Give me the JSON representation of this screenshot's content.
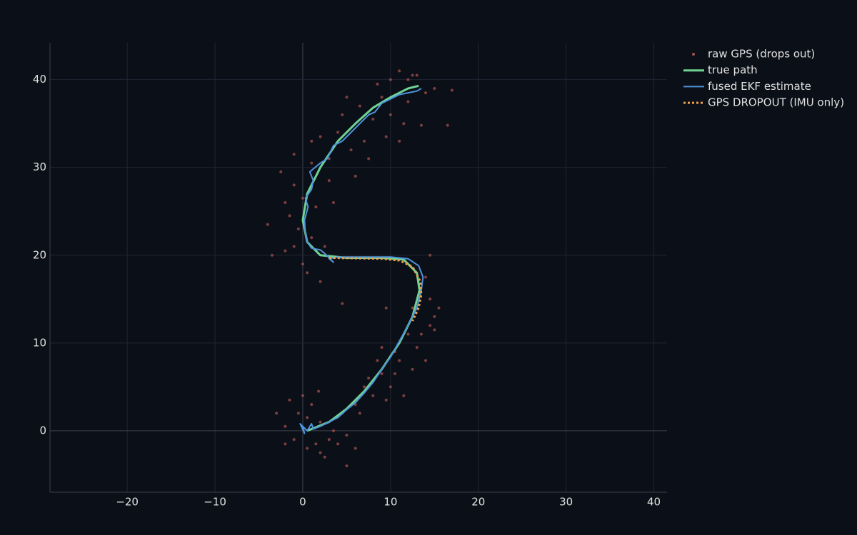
{
  "chart_data": {
    "type": "scatter",
    "xlim": [
      -28.8,
      41.5
    ],
    "ylim": [
      -7.0,
      44.2
    ],
    "xticks": [
      {
        "value": -20,
        "label": "−20"
      },
      {
        "value": -10,
        "label": "−10"
      },
      0,
      10,
      20,
      30,
      40
    ],
    "yticks": [
      0,
      10,
      20,
      30,
      40
    ],
    "grid": true,
    "legend": "top-right",
    "series": [
      {
        "name": "raw GPS (drops out)",
        "color": "#a4504f",
        "mode": "markers",
        "x": [
          -2,
          -1,
          0.5,
          1.5,
          2,
          -0.5,
          3,
          1,
          -3,
          2.5,
          4,
          0,
          1.8,
          5,
          -1.5,
          3.5,
          0.5,
          2,
          4.5,
          -2,
          6,
          7,
          8,
          9,
          10,
          11,
          6.5,
          8.5,
          10.5,
          9.5,
          12.5,
          7.5,
          11.5,
          9,
          13,
          14,
          12,
          14.5,
          15,
          14.5,
          15.5,
          12.5,
          13.5,
          14,
          15,
          9.5,
          14.5,
          10.5,
          5,
          6,
          0,
          -1,
          1,
          -2,
          0.5,
          2,
          -0.5,
          -3.5,
          -1.5,
          1.5,
          -4,
          2.5,
          4.5,
          0,
          -1,
          -2,
          -2.5,
          3,
          1,
          -1,
          1,
          3,
          4,
          5.5,
          6,
          7,
          4.5,
          6.5,
          8,
          7.5,
          9,
          10,
          11.5,
          12,
          10,
          12.5,
          14,
          11,
          13,
          15,
          16.5,
          17,
          11,
          9.5,
          3.5,
          2,
          5,
          13.5,
          8.5,
          12
        ],
        "y": [
          0.5,
          -1,
          -2,
          -1.5,
          1,
          2,
          -1,
          3,
          2,
          -3,
          -1.5,
          4,
          4.5,
          -4,
          3.5,
          0,
          1.5,
          -2.5,
          2,
          -1.5,
          3,
          5,
          4,
          6.5,
          5,
          8,
          2,
          8,
          9,
          3.5,
          7,
          6,
          4,
          9.5,
          9.5,
          8,
          11,
          12,
          13,
          15,
          14,
          14,
          11,
          17.5,
          11.5,
          14,
          20,
          6.5,
          -0.5,
          -2,
          19,
          21,
          22,
          20.5,
          18,
          17,
          23,
          20,
          24.5,
          25.5,
          23.5,
          21,
          14.5,
          26.5,
          28,
          26,
          29.5,
          28.5,
          30.5,
          31.5,
          33,
          31,
          34,
          32,
          29,
          33,
          36,
          37,
          35.5,
          31,
          38,
          36,
          35,
          37.5,
          40,
          40.5,
          38.5,
          41,
          40.5,
          39,
          34.8,
          38.8,
          33,
          33.5,
          26,
          33.5,
          38,
          34.8,
          39.5,
          40
        ]
      },
      {
        "name": "true path",
        "color": "#6fd394",
        "mode": "lines",
        "width": 3,
        "x": [
          0.5,
          3,
          5,
          7,
          9,
          11,
          12.5,
          13.3,
          13,
          11.5,
          9,
          5,
          2,
          0.5,
          0,
          0.5,
          2,
          4,
          6,
          8,
          10,
          12,
          13.2
        ],
        "y": [
          0,
          1,
          2.5,
          4.5,
          7,
          10,
          13,
          16,
          18,
          19.5,
          19.7,
          19.7,
          20,
          21.5,
          24,
          27,
          30,
          33,
          35,
          36.8,
          38,
          39,
          39.3
        ]
      },
      {
        "name": "fused EKF estimate",
        "color": "#4f93dc",
        "mode": "lines",
        "width": 2,
        "x": [
          0,
          0.2,
          -0.3,
          0.5,
          1,
          1.2,
          2,
          3,
          4,
          5,
          6,
          7,
          8,
          9,
          10,
          11,
          12,
          13,
          13.5,
          13.7,
          13.2,
          12,
          10,
          7,
          4,
          3,
          3.5,
          2.5,
          2,
          1,
          0.5,
          0.3,
          0.2,
          0.6,
          0.3,
          1,
          1.2,
          0.8,
          2,
          2.8,
          3.5,
          4.5,
          5.5,
          6.5,
          7.5,
          8.2,
          9,
          10,
          11,
          12,
          13,
          13.5
        ],
        "y": [
          0.5,
          -0.3,
          0.8,
          0,
          0.8,
          0.2,
          0.5,
          1,
          1.5,
          2.4,
          3.2,
          4.3,
          5.5,
          7,
          8.4,
          10.2,
          12,
          14,
          16,
          17.5,
          18.8,
          19.6,
          19.8,
          19.8,
          19.8,
          19.6,
          19.2,
          20.2,
          20.6,
          20.8,
          21.5,
          22.5,
          24,
          25.5,
          26.5,
          27.5,
          28.5,
          29.5,
          30.5,
          31,
          32.5,
          33,
          34,
          35,
          36,
          36.3,
          37.3,
          37.8,
          38.3,
          38.5,
          38.7,
          39
        ]
      },
      {
        "name": "GPS DROPOUT (IMU only)",
        "color": "#f0a050",
        "mode": "lines",
        "width": 3,
        "dash": "dot",
        "x": [
          3,
          6,
          9,
          11,
          12.5,
          13.4,
          13.5,
          13.2,
          12.5
        ],
        "y": [
          19.7,
          19.65,
          19.6,
          19.4,
          18.7,
          17,
          15.5,
          14,
          12.5
        ]
      }
    ]
  }
}
